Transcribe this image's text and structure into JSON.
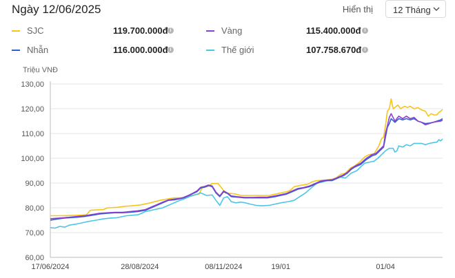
{
  "header": {
    "date_title": "Ngày 12/06/2025",
    "display_label": "Hiển thị",
    "range_value": "12 Tháng"
  },
  "legend": [
    {
      "name": "SJC",
      "price": "119.700.000đ",
      "color": "#f5c518"
    },
    {
      "name": "Vàng",
      "price": "115.400.000đ",
      "color": "#8a3fd1"
    },
    {
      "name": "Nhẫn",
      "price": "116.000.000đ",
      "color": "#2f5fd0"
    },
    {
      "name": "Thế giới",
      "price": "107.758.670đ",
      "color": "#4cc4e8"
    }
  ],
  "chart_data": {
    "type": "line",
    "ylabel": "Triệu VNĐ",
    "ylim": [
      60,
      130
    ],
    "yticks": [
      "60,00",
      "70,00",
      "80,00",
      "90,00",
      "100,00",
      "110,00",
      "120,00",
      "130,00"
    ],
    "xlabels": [
      "17/06/2024",
      "28/08/2024",
      "08/11/2024",
      "19/01",
      "01/04"
    ],
    "grid": true,
    "series": [
      {
        "name": "SJC",
        "color": "#f5c518",
        "points": [
          [
            0,
            76.8
          ],
          [
            10,
            76.8
          ],
          [
            20,
            76.9
          ],
          [
            30,
            77.0
          ],
          [
            38,
            77.2
          ],
          [
            42,
            79.0
          ],
          [
            50,
            79.2
          ],
          [
            56,
            79.3
          ],
          [
            60,
            80.0
          ],
          [
            70,
            80.2
          ],
          [
            78,
            80.6
          ],
          [
            86,
            80.8
          ],
          [
            95,
            81.2
          ],
          [
            105,
            82.0
          ],
          [
            115,
            83.0
          ],
          [
            122,
            83.5
          ],
          [
            130,
            84.0
          ],
          [
            140,
            84.0
          ],
          [
            148,
            85.0
          ],
          [
            156,
            85.5
          ],
          [
            160,
            88.5
          ],
          [
            165,
            88.5
          ],
          [
            170,
            89.8
          ],
          [
            176,
            89.8
          ],
          [
            180,
            88.0
          ],
          [
            184,
            86.0
          ],
          [
            188,
            85.8
          ],
          [
            194,
            85.6
          ],
          [
            200,
            85.0
          ],
          [
            210,
            85.0
          ],
          [
            220,
            85.0
          ],
          [
            230,
            85.0
          ],
          [
            236,
            85.5
          ],
          [
            242,
            86.0
          ],
          [
            248,
            86.5
          ],
          [
            252,
            87.0
          ],
          [
            256,
            88.5
          ],
          [
            262,
            89.0
          ],
          [
            270,
            89.5
          ],
          [
            275,
            90.5
          ],
          [
            280,
            91.0
          ],
          [
            290,
            91.2
          ],
          [
            295,
            91.5
          ],
          [
            300,
            92.0
          ],
          [
            305,
            93.5
          ],
          [
            310,
            94.0
          ],
          [
            315,
            96.0
          ],
          [
            320,
            97.0
          ],
          [
            325,
            98.5
          ],
          [
            330,
            100.5
          ],
          [
            335,
            101.5
          ],
          [
            340,
            101.8
          ],
          [
            345,
            105.0
          ],
          [
            348,
            108.0
          ],
          [
            350,
            108.5
          ],
          [
            352,
            113.0
          ],
          [
            354,
            119.0
          ],
          [
            356,
            120.0
          ],
          [
            358,
            124.0
          ],
          [
            360,
            120.0
          ],
          [
            362,
            120.5
          ],
          [
            365,
            121.5
          ],
          [
            368,
            120.0
          ],
          [
            372,
            121.0
          ],
          [
            375,
            120.5
          ],
          [
            378,
            121.0
          ],
          [
            382,
            120.0
          ],
          [
            386,
            120.5
          ],
          [
            390,
            119.5
          ],
          [
            394,
            119.0
          ],
          [
            397,
            117.0
          ],
          [
            400,
            118.0
          ],
          [
            403,
            117.5
          ],
          [
            406,
            117.5
          ],
          [
            408,
            118.5
          ],
          [
            410,
            119.0
          ],
          [
            412,
            119.7
          ]
        ]
      },
      {
        "name": "Thế giới",
        "color": "#4cc4e8",
        "points": [
          [
            0,
            72.0
          ],
          [
            5,
            71.8
          ],
          [
            10,
            72.5
          ],
          [
            15,
            72.2
          ],
          [
            20,
            73.0
          ],
          [
            28,
            73.5
          ],
          [
            34,
            74.0
          ],
          [
            40,
            74.5
          ],
          [
            48,
            75.0
          ],
          [
            55,
            75.5
          ],
          [
            62,
            75.8
          ],
          [
            70,
            76.0
          ],
          [
            76,
            76.5
          ],
          [
            80,
            76.8
          ],
          [
            86,
            77.0
          ],
          [
            92,
            77.2
          ],
          [
            96,
            77.8
          ],
          [
            100,
            78.5
          ],
          [
            106,
            79.0
          ],
          [
            112,
            79.5
          ],
          [
            118,
            80.0
          ],
          [
            124,
            81.0
          ],
          [
            130,
            82.0
          ],
          [
            136,
            83.0
          ],
          [
            140,
            83.5
          ],
          [
            146,
            84.5
          ],
          [
            150,
            85.0
          ],
          [
            154,
            85.5
          ],
          [
            158,
            86.0
          ],
          [
            164,
            85.0
          ],
          [
            170,
            85.2
          ],
          [
            174,
            83.0
          ],
          [
            178,
            81.0
          ],
          [
            182,
            84.0
          ],
          [
            186,
            84.5
          ],
          [
            190,
            82.5
          ],
          [
            195,
            82.0
          ],
          [
            200,
            82.3
          ],
          [
            205,
            82.0
          ],
          [
            210,
            81.5
          ],
          [
            216,
            81.0
          ],
          [
            222,
            80.8
          ],
          [
            230,
            81.0
          ],
          [
            236,
            81.5
          ],
          [
            242,
            82.0
          ],
          [
            250,
            82.5
          ],
          [
            256,
            83.0
          ],
          [
            262,
            84.5
          ],
          [
            268,
            86.0
          ],
          [
            274,
            88.0
          ],
          [
            280,
            90.0
          ],
          [
            286,
            90.5
          ],
          [
            292,
            91.0
          ],
          [
            298,
            91.5
          ],
          [
            304,
            92.5
          ],
          [
            310,
            92.0
          ],
          [
            316,
            94.0
          ],
          [
            322,
            95.0
          ],
          [
            326,
            96.5
          ],
          [
            330,
            98.0
          ],
          [
            336,
            98.5
          ],
          [
            340,
            98.8
          ],
          [
            344,
            100.0
          ],
          [
            348,
            101.5
          ],
          [
            352,
            103.0
          ],
          [
            356,
            104.0
          ],
          [
            360,
            104.0
          ],
          [
            362,
            102.5
          ],
          [
            364,
            103.0
          ],
          [
            366,
            105.0
          ],
          [
            370,
            104.5
          ],
          [
            374,
            105.5
          ],
          [
            378,
            105.0
          ],
          [
            382,
            106.0
          ],
          [
            386,
            106.0
          ],
          [
            390,
            106.0
          ],
          [
            394,
            105.5
          ],
          [
            398,
            106.0
          ],
          [
            402,
            106.3
          ],
          [
            406,
            106.5
          ],
          [
            408,
            107.5
          ],
          [
            410,
            107.0
          ],
          [
            412,
            107.8
          ]
        ]
      },
      {
        "name": "Nhẫn",
        "color": "#2f5fd0",
        "points": [
          [
            0,
            75.0
          ],
          [
            8,
            75.5
          ],
          [
            14,
            75.8
          ],
          [
            20,
            76.0
          ],
          [
            28,
            76.2
          ],
          [
            36,
            76.5
          ],
          [
            44,
            77.0
          ],
          [
            52,
            77.5
          ],
          [
            60,
            77.8
          ],
          [
            68,
            78.0
          ],
          [
            76,
            78.0
          ],
          [
            84,
            78.2
          ],
          [
            92,
            78.5
          ],
          [
            100,
            79.0
          ],
          [
            106,
            80.0
          ],
          [
            112,
            81.0
          ],
          [
            118,
            82.0
          ],
          [
            124,
            83.0
          ],
          [
            130,
            83.2
          ],
          [
            136,
            83.6
          ],
          [
            140,
            84.0
          ],
          [
            146,
            85.0
          ],
          [
            150,
            85.8
          ],
          [
            154,
            86.5
          ],
          [
            158,
            88.0
          ],
          [
            162,
            88.3
          ],
          [
            166,
            89.0
          ],
          [
            170,
            88.5
          ],
          [
            174,
            86.0
          ],
          [
            178,
            84.5
          ],
          [
            182,
            86.5
          ],
          [
            186,
            85.8
          ],
          [
            190,
            84.5
          ],
          [
            196,
            84.3
          ],
          [
            204,
            84.0
          ],
          [
            212,
            84.0
          ],
          [
            220,
            84.0
          ],
          [
            228,
            84.0
          ],
          [
            236,
            84.5
          ],
          [
            242,
            85.0
          ],
          [
            248,
            85.5
          ],
          [
            254,
            86.5
          ],
          [
            260,
            87.5
          ],
          [
            266,
            88.0
          ],
          [
            272,
            88.5
          ],
          [
            278,
            89.5
          ],
          [
            284,
            90.5
          ],
          [
            290,
            91.0
          ],
          [
            296,
            91.0
          ],
          [
            302,
            92.0
          ],
          [
            308,
            93.0
          ],
          [
            312,
            94.0
          ],
          [
            316,
            95.5
          ],
          [
            320,
            96.5
          ],
          [
            326,
            97.5
          ],
          [
            332,
            99.5
          ],
          [
            338,
            101.0
          ],
          [
            342,
            101.5
          ],
          [
            346,
            103.0
          ],
          [
            350,
            104.5
          ],
          [
            354,
            112.5
          ],
          [
            356,
            114.0
          ],
          [
            358,
            116.0
          ],
          [
            362,
            114.5
          ],
          [
            366,
            116.0
          ],
          [
            370,
            115.5
          ],
          [
            374,
            116.0
          ],
          [
            378,
            115.5
          ],
          [
            382,
            116.0
          ],
          [
            386,
            115.0
          ],
          [
            390,
            114.5
          ],
          [
            394,
            114.0
          ],
          [
            398,
            114.2
          ],
          [
            402,
            114.5
          ],
          [
            406,
            115.0
          ],
          [
            410,
            115.5
          ],
          [
            412,
            116.0
          ]
        ]
      },
      {
        "name": "Vàng",
        "color": "#8a3fd1",
        "points": [
          [
            0,
            75.6
          ],
          [
            8,
            75.8
          ],
          [
            14,
            76.0
          ],
          [
            20,
            76.2
          ],
          [
            28,
            76.5
          ],
          [
            36,
            76.8
          ],
          [
            44,
            77.3
          ],
          [
            52,
            77.8
          ],
          [
            60,
            78.0
          ],
          [
            68,
            78.2
          ],
          [
            76,
            78.2
          ],
          [
            84,
            78.5
          ],
          [
            92,
            78.8
          ],
          [
            100,
            79.3
          ],
          [
            106,
            80.3
          ],
          [
            112,
            81.3
          ],
          [
            118,
            82.3
          ],
          [
            124,
            83.2
          ],
          [
            130,
            83.5
          ],
          [
            136,
            83.8
          ],
          [
            140,
            84.2
          ],
          [
            146,
            85.2
          ],
          [
            150,
            86.0
          ],
          [
            154,
            86.8
          ],
          [
            158,
            88.3
          ],
          [
            162,
            88.6
          ],
          [
            166,
            89.2
          ],
          [
            170,
            88.8
          ],
          [
            174,
            86.3
          ],
          [
            178,
            84.8
          ],
          [
            182,
            86.8
          ],
          [
            186,
            86.0
          ],
          [
            190,
            84.8
          ],
          [
            196,
            84.5
          ],
          [
            204,
            84.2
          ],
          [
            212,
            84.2
          ],
          [
            220,
            84.3
          ],
          [
            228,
            84.3
          ],
          [
            236,
            84.8
          ],
          [
            242,
            85.3
          ],
          [
            248,
            85.8
          ],
          [
            254,
            86.8
          ],
          [
            260,
            87.8
          ],
          [
            266,
            88.2
          ],
          [
            272,
            88.8
          ],
          [
            278,
            89.8
          ],
          [
            284,
            90.8
          ],
          [
            290,
            91.2
          ],
          [
            296,
            91.3
          ],
          [
            302,
            92.3
          ],
          [
            308,
            93.3
          ],
          [
            312,
            94.3
          ],
          [
            316,
            95.8
          ],
          [
            320,
            96.8
          ],
          [
            326,
            98.0
          ],
          [
            332,
            100.0
          ],
          [
            338,
            101.5
          ],
          [
            342,
            102.0
          ],
          [
            346,
            103.5
          ],
          [
            350,
            105.0
          ],
          [
            352,
            110.0
          ],
          [
            354,
            113.0
          ],
          [
            356,
            116.5
          ],
          [
            358,
            118.0
          ],
          [
            362,
            115.0
          ],
          [
            366,
            117.0
          ],
          [
            370,
            116.0
          ],
          [
            374,
            117.0
          ],
          [
            378,
            116.0
          ],
          [
            382,
            116.5
          ],
          [
            386,
            115.0
          ],
          [
            390,
            114.5
          ],
          [
            394,
            113.5
          ],
          [
            398,
            114.0
          ],
          [
            402,
            114.5
          ],
          [
            406,
            114.8
          ],
          [
            410,
            115.0
          ],
          [
            412,
            115.4
          ]
        ]
      }
    ]
  }
}
